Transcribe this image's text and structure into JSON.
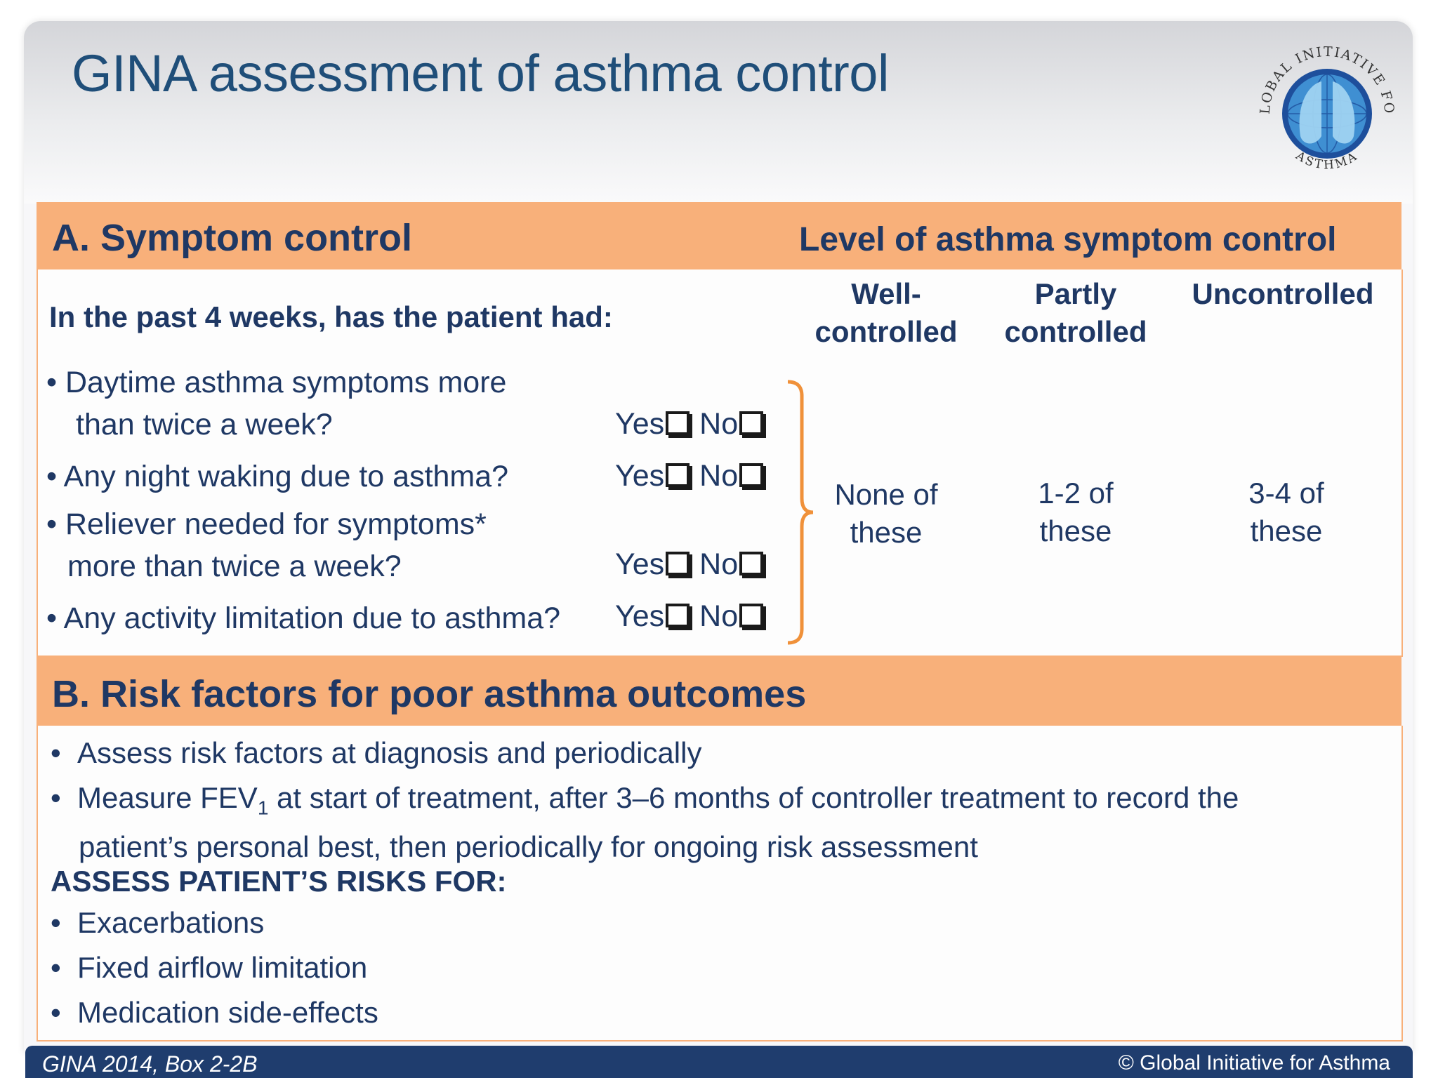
{
  "title": "GINA assessment of asthma control",
  "logo": {
    "top_text": "GLOBAL INITIATIVE FOR",
    "bottom_text": "ASTHMA",
    "icon": "lungs-globe-logo"
  },
  "section_a": {
    "heading": "A. Symptom control",
    "level_heading": "Level of asthma symptom control",
    "question_heading": "In the past 4 weeks, has the patient had:",
    "columns": [
      {
        "line1": "Well-",
        "line2": "controlled"
      },
      {
        "line1": "Partly",
        "line2": "controlled"
      },
      {
        "line1": "Uncontrolled",
        "line2": ""
      }
    ],
    "questions": [
      {
        "line1": "• Daytime asthma symptoms more",
        "line2": "than twice a week?"
      },
      {
        "line1": "• Any night waking due to asthma?",
        "line2": ""
      },
      {
        "line1": "• Reliever needed for symptoms*",
        "line2": "more than twice a week?"
      },
      {
        "line1": "• Any activity limitation due to asthma?",
        "line2": ""
      }
    ],
    "yes_label": "Yes",
    "no_label": "No",
    "levels": [
      {
        "line1": "None of",
        "line2": "these"
      },
      {
        "line1": "1-2 of",
        "line2": "these"
      },
      {
        "line1": "3-4 of",
        "line2": "these"
      }
    ]
  },
  "section_b": {
    "heading": "B. Risk factors for poor asthma outcomes",
    "bullets": [
      "Assess risk factors at diagnosis and periodically"
    ],
    "fev": {
      "pre": "Measure FEV",
      "sub": "1",
      "post": " at start of treatment, after 3–6 months of controller treatment to record the",
      "line2": "patient’s personal best, then periodically for ongoing risk assessment"
    },
    "assess_heading": "ASSESS PATIENT’S RISKS FOR:",
    "risks": [
      "Exacerbations",
      "Fixed airflow limitation",
      "Medication side-effects"
    ]
  },
  "footer": {
    "left": "GINA 2014, Box 2-2B",
    "right": "© Global Initiative for Asthma"
  },
  "colors": {
    "accent_orange": "#f8b07a",
    "navy": "#1f3864",
    "title_blue": "#1f4e79",
    "footer_bg": "#1f3d6e"
  }
}
